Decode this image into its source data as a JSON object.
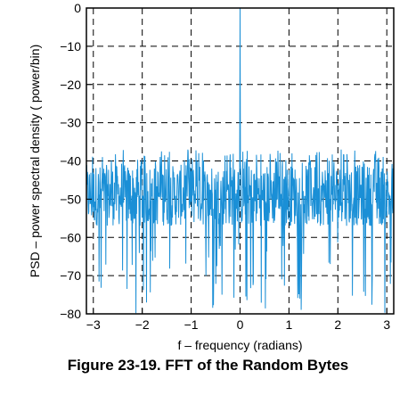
{
  "caption": "Figure 23-19. FFT of the Random Bytes",
  "chart_data": {
    "type": "line",
    "title": "",
    "xlabel": "f – frequency (radians)",
    "ylabel": "PSD – power spectral density ( power/bin)",
    "xlim": [
      -3.1416,
      3.1416
    ],
    "ylim": [
      -80,
      0
    ],
    "xticks": [
      -3,
      -2,
      -1,
      0,
      1,
      2,
      3
    ],
    "xtick_labels": [
      "−3",
      "−2",
      "−1",
      "0",
      "1",
      "2",
      "3"
    ],
    "yticks": [
      0,
      -10,
      -20,
      -30,
      -40,
      -50,
      -60,
      -70,
      -80
    ],
    "ytick_labels": [
      "0",
      "−10",
      "−20",
      "−30",
      "−40",
      "−50",
      "−60",
      "−70",
      "−80"
    ],
    "grid": true,
    "grid_style": "dashed",
    "line_color": "#1a8fd6",
    "series": [
      {
        "description": "noise floor fluctuating between about -37 and -80 with a spike to 0 at f = 0",
        "x": [
          -3.1416,
          -2.9,
          -2.5,
          -2.0,
          -1.5,
          -1.0,
          -0.5,
          -0.05,
          0.0,
          0.05,
          0.5,
          1.0,
          1.5,
          2.0,
          2.5,
          2.9,
          3.1416
        ],
        "y": [
          -50,
          -48,
          -49,
          -47,
          -50,
          -51,
          -49,
          -47,
          0,
          -48,
          -50,
          -49,
          -48,
          -50,
          -49,
          -48,
          -50
        ],
        "noise_floor_mean": -49,
        "noise_floor_max": -37,
        "noise_floor_min": -80,
        "peak": {
          "x": 0,
          "y": 0
        }
      }
    ]
  }
}
